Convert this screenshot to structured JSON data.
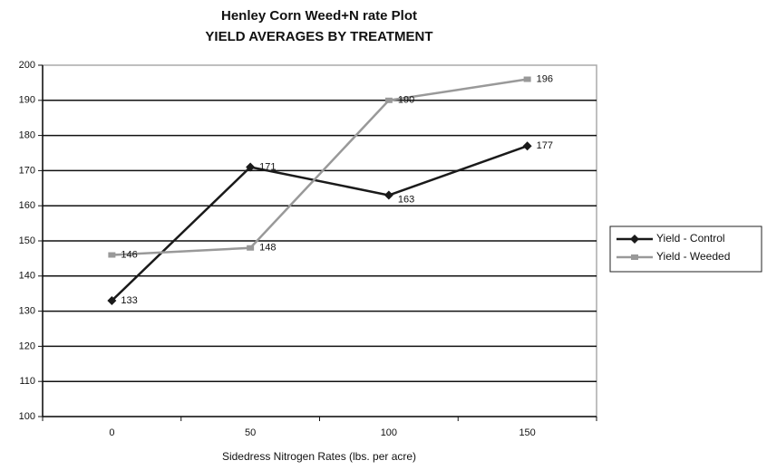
{
  "chart_data": {
    "type": "line",
    "title": "Henley Corn Weed+N rate Plot",
    "subtitle": "YIELD AVERAGES BY TREATMENT",
    "x_label": "Sidedress Nitrogen Rates (lbs. per acre)",
    "categories": [
      "0",
      "50",
      "100",
      "150"
    ],
    "series": [
      {
        "name": "Yield - Control",
        "color": "#1a1a1a",
        "marker": "diamond",
        "values": [
          133,
          171,
          163,
          177
        ]
      },
      {
        "name": "Yield - Weeded",
        "color": "#999999",
        "marker": "square",
        "values": [
          146,
          148,
          190,
          196
        ]
      }
    ],
    "ylim": [
      100,
      200
    ],
    "yticks": [
      100,
      110,
      120,
      130,
      140,
      150,
      160,
      170,
      180,
      190,
      200
    ],
    "grid": true,
    "legend": "right"
  }
}
